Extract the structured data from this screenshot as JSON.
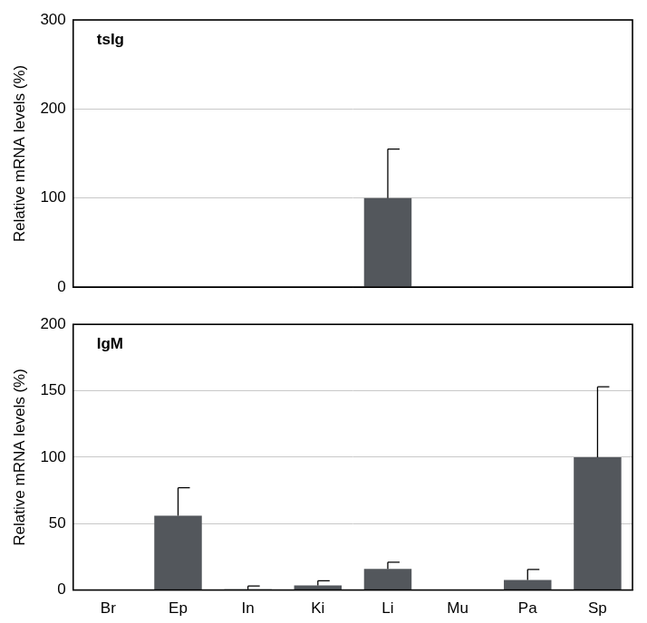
{
  "chart_data": [
    {
      "type": "bar",
      "title": "tsIg",
      "y_label": "Relative mRNA levels (%)",
      "categories": [
        "Br",
        "Ep",
        "In",
        "Ki",
        "Li",
        "Mu",
        "Pa",
        "Sp"
      ],
      "values": [
        0,
        0,
        0,
        0,
        100,
        0,
        0,
        0
      ],
      "errors": [
        0,
        0,
        0,
        0,
        55,
        0,
        0,
        0
      ],
      "color": "#53575c",
      "ylim": [
        0,
        300
      ],
      "yticks": [
        0,
        100,
        200,
        300
      ],
      "grid": true,
      "tick_labels": "y"
    },
    {
      "type": "bar",
      "title": "IgM",
      "y_label": "Relative mRNA levels (%)",
      "categories": [
        "Br",
        "Ep",
        "In",
        "Ki",
        "Li",
        "Mu",
        "Pa",
        "Sp"
      ],
      "values": [
        0,
        56,
        0.5,
        3.5,
        16,
        0,
        7.5,
        100
      ],
      "errors": [
        0,
        21,
        2.5,
        3.5,
        5,
        0,
        8,
        53
      ],
      "color": "#53575c",
      "ylim": [
        0,
        200
      ],
      "yticks": [
        0,
        50,
        100,
        150,
        200
      ],
      "grid": true
    }
  ]
}
